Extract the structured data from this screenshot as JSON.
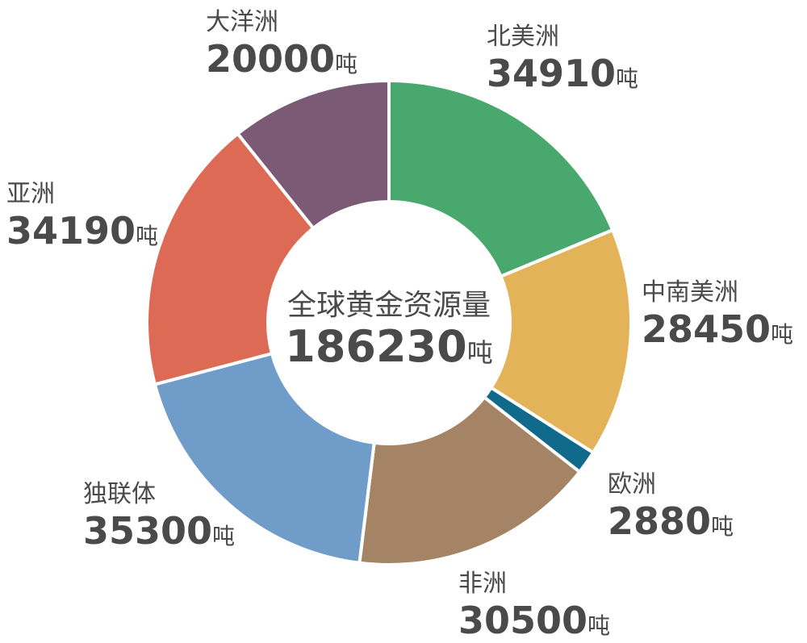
{
  "chart_data": {
    "type": "pie",
    "donut": true,
    "center": {
      "title": "全球黄金资源量",
      "value": "186230",
      "unit": "吨"
    },
    "unit": "吨",
    "slices": [
      {
        "name": "北美洲",
        "value": 34910,
        "label": "34910",
        "color": "#49a86e"
      },
      {
        "name": "中南美洲",
        "value": 28450,
        "label": "28450",
        "color": "#e3b35a"
      },
      {
        "name": "欧洲",
        "value": 2880,
        "label": "2880",
        "color": "#0f6a8c"
      },
      {
        "name": "非洲",
        "value": 30500,
        "label": "30500",
        "color": "#a58466"
      },
      {
        "name": "独联体",
        "value": 35300,
        "label": "35300",
        "color": "#6f9cc8"
      },
      {
        "name": "亚洲",
        "value": 34190,
        "label": "34190",
        "color": "#dd6a55"
      },
      {
        "name": "大洋洲",
        "value": 20000,
        "label": "20000",
        "color": "#7b5a76"
      }
    ]
  }
}
